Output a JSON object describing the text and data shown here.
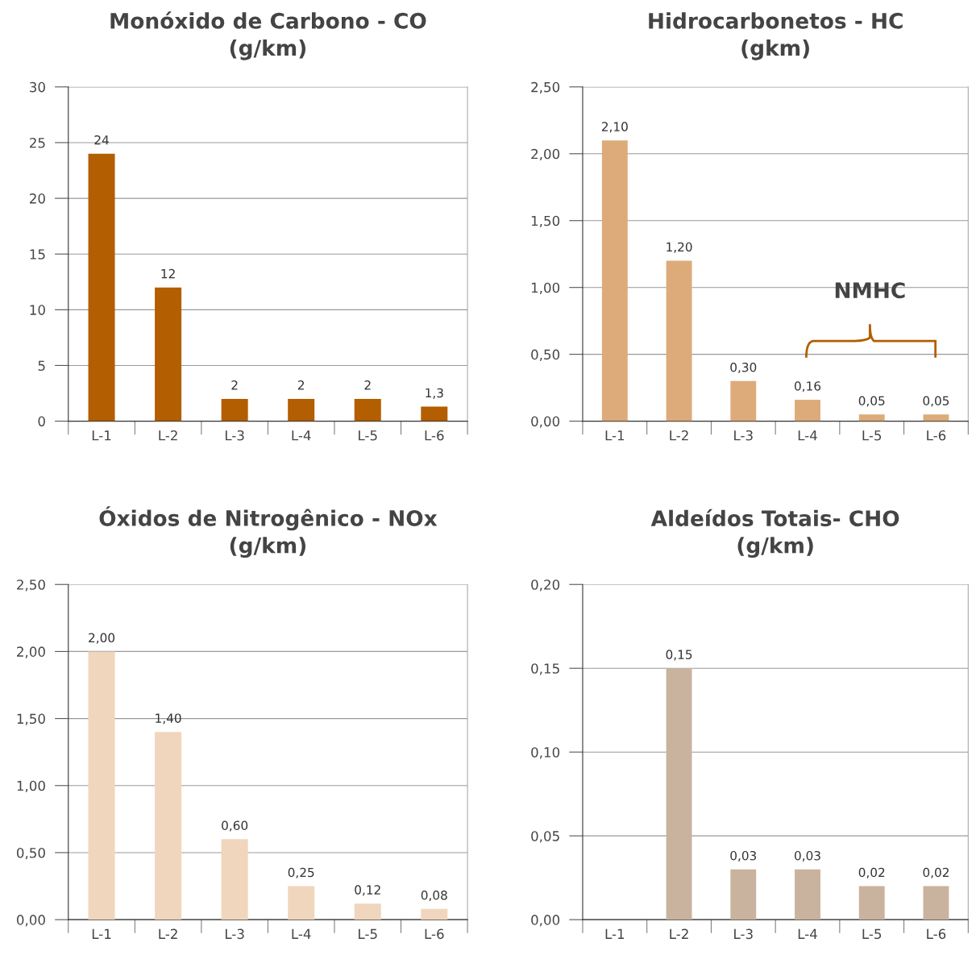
{
  "chart_data": [
    {
      "type": "bar",
      "title": "Monóxido de Carbono - CO\n(g/km)",
      "categories": [
        "L-1",
        "L-2",
        "L-3",
        "L-4",
        "L-5",
        "L-6"
      ],
      "series": [
        {
          "color": "#b35e00",
          "values": [
            24,
            12,
            2,
            2,
            2,
            1.3
          ]
        }
      ],
      "value_labels": [
        "24",
        "12",
        "2",
        "2",
        "2",
        "1,3"
      ],
      "ylim": [
        0,
        30
      ],
      "yticks": [
        0,
        5,
        10,
        15,
        20,
        25,
        30
      ],
      "grid": "y"
    },
    {
      "type": "bar",
      "title": "Hidrocarbonetos - HC\n(gkm)",
      "categories": [
        "L-1",
        "L-2",
        "L-3",
        "L-4",
        "L-5",
        "L-6"
      ],
      "series": [
        {
          "color": "#ddab7a",
          "values": [
            2.1,
            1.2,
            0.3,
            0.16,
            0.05,
            0.05
          ]
        }
      ],
      "value_labels": [
        "2,10",
        "1,20",
        "0,30",
        "0,16",
        "0,05",
        "0,05"
      ],
      "ylim": [
        0,
        2.5
      ],
      "yticks": [
        {
          "value": 0,
          "label": "0,00"
        },
        {
          "value": 0.5,
          "label": "0,50"
        },
        {
          "value": 1.0,
          "label": "1,00"
        },
        {
          "value": 1.5,
          "label": "1,50"
        },
        {
          "value": 2.0,
          "label": "2,00"
        },
        {
          "value": 2.5,
          "label": "2,50"
        }
      ],
      "annotations": [
        "NMHC"
      ],
      "grid": "y"
    },
    {
      "type": "bar",
      "title": "Óxidos de Nitrogênico - NOx\n(g/km)",
      "categories": [
        "L-1",
        "L-2",
        "L-3",
        "L-4",
        "L-5",
        "L-6"
      ],
      "series": [
        {
          "color": "#f0d6bd",
          "values": [
            2.0,
            1.4,
            0.6,
            0.25,
            0.12,
            0.08
          ]
        }
      ],
      "value_labels": [
        "2,00",
        "1,40",
        "0,60",
        "0,25",
        "0,12",
        "0,08"
      ],
      "ylim": [
        0,
        2.5
      ],
      "yticks": [
        {
          "value": 0,
          "label": "0,00"
        },
        {
          "value": 0.5,
          "label": "0,50"
        },
        {
          "value": 1.0,
          "label": "1,00"
        },
        {
          "value": 1.5,
          "label": "1,50"
        },
        {
          "value": 2.0,
          "label": "2,00"
        },
        {
          "value": 2.5,
          "label": "2,50"
        }
      ],
      "grid": "y"
    },
    {
      "type": "bar",
      "title": "Aldeídos Totais- CHO\n(g/km)",
      "categories": [
        "L-1",
        "L-2",
        "L-3",
        "L-4",
        "L-5",
        "L-6"
      ],
      "series": [
        {
          "color": "#c9b39f",
          "values": [
            null,
            0.15,
            0.03,
            0.03,
            0.02,
            0.02
          ]
        }
      ],
      "value_labels": [
        null,
        "0,15",
        "0,03",
        "0,03",
        "0,02",
        "0,02"
      ],
      "ylim": [
        0,
        0.2
      ],
      "yticks": [
        {
          "value": 0,
          "label": "0,00"
        },
        {
          "value": 0.05,
          "label": "0,05"
        },
        {
          "value": 0.1,
          "label": "0,10"
        },
        {
          "value": 0.15,
          "label": "0,15"
        },
        {
          "value": 0.2,
          "label": "0,20"
        }
      ],
      "grid": "y"
    }
  ]
}
